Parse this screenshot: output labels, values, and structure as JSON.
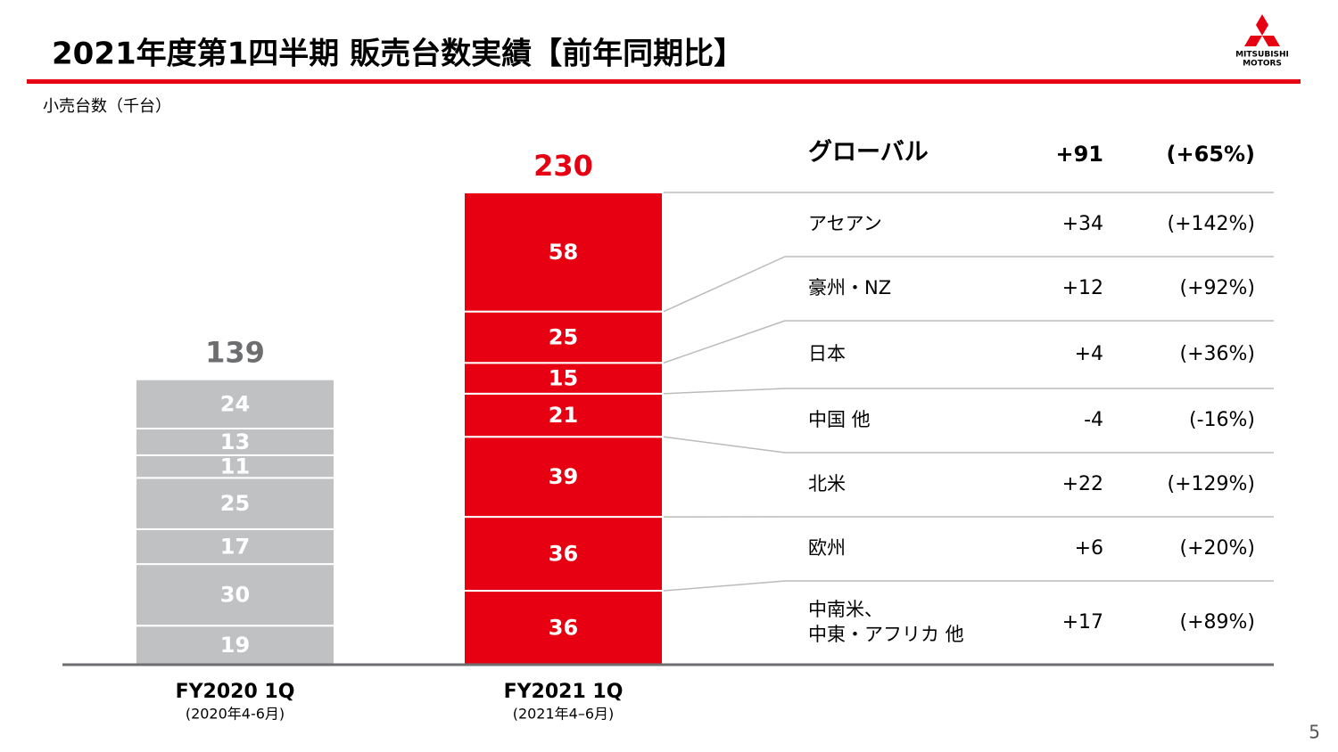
{
  "title": "2021年度第1四半期 販売台数実績【前年同期比】",
  "logo": [
    "MITSUBISHI",
    "MOTORS"
  ],
  "page_number": "5",
  "chart_data": {
    "type": "stacked_bar",
    "y_label": "小売台数（千台）",
    "categories": [
      "FY2020 1Q",
      "FY2021 1Q"
    ],
    "category_sublabels": [
      "(2020年4-6月)",
      "(2021年4–6月)"
    ],
    "colors": [
      "#c0c1c3",
      "#e60012"
    ],
    "total_colors": [
      "#6d6e70",
      "#e60012"
    ],
    "totals": [
      139,
      230
    ],
    "ylim": [
      0,
      230
    ],
    "series": [
      {
        "name": "中南米、\n中東・アフリカ 他",
        "values": [
          19,
          36
        ],
        "change": "+17",
        "change_pct": "(+89%)"
      },
      {
        "name": "欧州",
        "values": [
          30,
          36
        ],
        "change": "+6",
        "change_pct": "(+20%)"
      },
      {
        "name": "北米",
        "values": [
          17,
          39
        ],
        "change": "+22",
        "change_pct": "(+129%)"
      },
      {
        "name": "中国 他",
        "values": [
          25,
          21
        ],
        "change": "-4",
        "change_pct": "(-16%)"
      },
      {
        "name": "日本",
        "values": [
          11,
          15
        ],
        "change": "+4",
        "change_pct": "(+36%)"
      },
      {
        "name": "豪州・NZ",
        "values": [
          13,
          25
        ],
        "change": "+12",
        "change_pct": "(+92%)"
      },
      {
        "name": "アセアン",
        "values": [
          24,
          58
        ],
        "change": "+34",
        "change_pct": "(+142%)"
      }
    ],
    "total_row": {
      "name": "グローバル",
      "change": "+91",
      "change_pct": "(+65%)"
    }
  }
}
